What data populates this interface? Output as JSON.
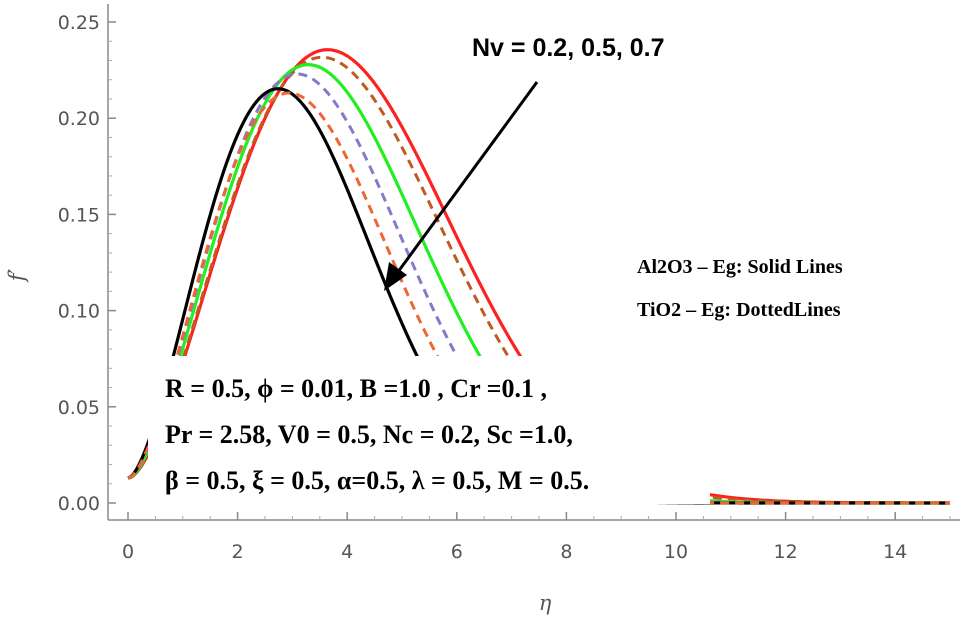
{
  "chart_data": {
    "type": "line",
    "title": "",
    "xlabel": "η",
    "ylabel": "f′",
    "xlim": [
      0,
      15
    ],
    "ylim": [
      0,
      0.25
    ],
    "xticks": [
      0,
      2,
      4,
      6,
      8,
      10,
      12,
      14
    ],
    "yticks": [
      0.0,
      0.05,
      0.1,
      0.15,
      0.2,
      0.25
    ],
    "xtick_labels": [
      "0",
      "2",
      "4",
      "6",
      "8",
      "10",
      "12",
      "14"
    ],
    "ytick_labels": [
      "0.00",
      "0.05",
      "0.10",
      "0.15",
      "0.20",
      "0.25"
    ],
    "series": [
      {
        "name": "Al2O3-Eg, Nv = 0.2",
        "color": "#ff2020",
        "style": "solid",
        "f0": 0.013,
        "peak_x": 3.65,
        "peak_y": 0.248
      },
      {
        "name": "TiO2-Eg, Nv = 0.2",
        "color": "#c05a20",
        "style": "dashed",
        "f0": 0.013,
        "peak_x": 3.55,
        "peak_y": 0.244
      },
      {
        "name": "Al2O3-Eg, Nv = 0.5",
        "color": "#22ee22",
        "style": "solid",
        "f0": 0.013,
        "peak_x": 3.3,
        "peak_y": 0.24
      },
      {
        "name": "TiO2-Eg, Nv = 0.5",
        "color": "#8878cc",
        "style": "dashed",
        "f0": 0.013,
        "peak_x": 3.1,
        "peak_y": 0.235
      },
      {
        "name": "Al2O3-Eg, Nv = 0.7",
        "color": "#000000",
        "style": "solid",
        "f0": 0.013,
        "peak_x": 2.75,
        "peak_y": 0.227
      },
      {
        "name": "TiO2-Eg, Nv = 0.7",
        "color": "#ee6633",
        "style": "dashed",
        "f0": 0.013,
        "peak_x": 2.95,
        "peak_y": 0.225
      }
    ],
    "annotations": {
      "arrow_label": "Nv =  0.2, 0.5, 0.7",
      "legend_solid": "Al2O3 – Eg: Solid Lines",
      "legend_dotted": "TiO2 – Eg: DottedLines",
      "params_line1": "R = 0.5, ϕ = 0.01, B =1.0 , Cr =0.1 ,",
      "params_line2": "Pr = 2.58, V0 = 0.5, Nc = 0.2, Sc =1.0,",
      "params_line3": "β = 0.5, ξ = 0.5,  α=0.5, λ = 0.5, M = 0.5."
    }
  }
}
